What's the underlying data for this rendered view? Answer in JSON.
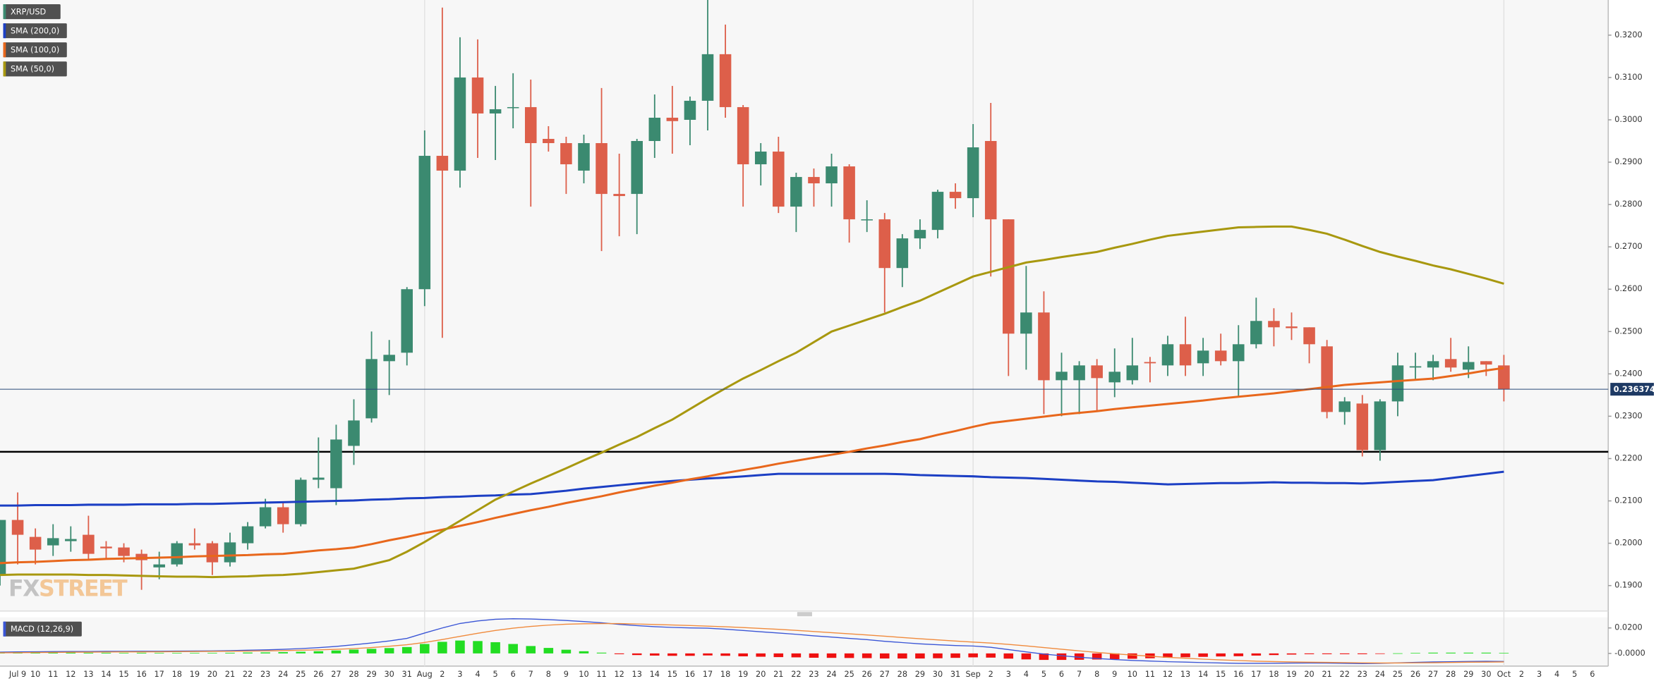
{
  "chart_data": [
    {
      "type": "candlestick",
      "name": "XRP/USD",
      "categories": [
        null,
        "Jul 9",
        "10",
        "11",
        "12",
        "13",
        "14",
        "15",
        "16",
        "17",
        "18",
        "19",
        "20",
        "21",
        "22",
        "23",
        "24",
        "25",
        "26",
        "27",
        "28",
        "29",
        "30",
        "31",
        "Aug",
        "2",
        "3",
        "4",
        "5",
        "6",
        "7",
        "8",
        "9",
        "10",
        "11",
        "12",
        "13",
        "14",
        "15",
        "16",
        "17",
        "18",
        "19",
        "20",
        "21",
        "22",
        "23",
        "24",
        "25",
        "26",
        "27",
        "28",
        "29",
        "30",
        "31",
        "Sep",
        "2",
        "3",
        "4",
        "5",
        "6",
        "7",
        "8",
        "9",
        "10",
        "11",
        "12",
        "13",
        "14",
        "15",
        "16",
        "17",
        "18",
        "19",
        "20",
        "21",
        "22",
        "23",
        "24",
        "25",
        "26",
        "27",
        "28",
        "29",
        "30",
        "Oct",
        "2",
        "3",
        "4",
        "5",
        "6"
      ],
      "open": [
        0.1925,
        0.2055,
        0.2015,
        0.1995,
        0.2005,
        0.202,
        0.1992,
        0.199,
        0.1975,
        0.1943,
        0.195,
        0.2,
        0.2,
        0.1955,
        0.2,
        0.204,
        0.2085,
        0.2045,
        0.215,
        0.213,
        0.223,
        0.2295,
        0.243,
        0.245,
        0.26,
        0.2915,
        0.288,
        0.31,
        0.3015,
        0.3028,
        0.303,
        0.2955,
        0.2945,
        0.288,
        0.2945,
        0.2825,
        0.2825,
        0.295,
        0.3005,
        0.3,
        0.3045,
        0.3155,
        0.303,
        0.2895,
        0.2925,
        0.2795,
        0.2865,
        0.285,
        0.289,
        0.2765,
        0.2765,
        0.265,
        0.272,
        0.274,
        0.283,
        0.2815,
        0.295,
        0.2765,
        0.2495,
        0.2545,
        0.2385,
        0.2385,
        0.242,
        0.238,
        0.2385,
        0.2428,
        0.242,
        0.247,
        0.2425,
        0.2455,
        0.243,
        0.247,
        0.2525,
        0.2512,
        0.251,
        0.2465,
        0.231,
        0.233,
        0.222,
        0.2335,
        0.2415,
        0.2415,
        0.2435,
        0.241,
        0.243,
        0.242,
        null,
        null,
        null,
        null,
        null
      ],
      "high": [
        0.2055,
        0.212,
        0.2035,
        0.2045,
        0.204,
        0.2065,
        0.2005,
        0.2,
        0.1985,
        0.198,
        0.2005,
        0.2035,
        0.2005,
        0.2025,
        0.205,
        0.2105,
        0.2095,
        0.2155,
        0.225,
        0.228,
        0.234,
        0.25,
        0.248,
        0.2605,
        0.2975,
        0.3265,
        0.3195,
        0.319,
        0.308,
        0.311,
        0.3095,
        0.2985,
        0.296,
        0.2965,
        0.3075,
        0.292,
        0.2955,
        0.306,
        0.308,
        0.3055,
        0.3285,
        0.3225,
        0.3035,
        0.2945,
        0.296,
        0.2875,
        0.2885,
        0.292,
        0.2895,
        0.281,
        0.278,
        0.273,
        0.2765,
        0.2835,
        0.285,
        0.299,
        0.304,
        0.2765,
        0.2655,
        0.2595,
        0.245,
        0.243,
        0.2435,
        0.246,
        0.2485,
        0.244,
        0.249,
        0.2535,
        0.2485,
        0.2495,
        0.2515,
        0.258,
        0.2555,
        0.2545,
        0.251,
        0.248,
        0.2345,
        0.235,
        0.234,
        0.245,
        0.245,
        0.2445,
        0.2485,
        0.2465,
        0.243,
        0.2445,
        null,
        null,
        null,
        null,
        null
      ],
      "low": [
        0.19,
        0.195,
        0.195,
        0.197,
        0.198,
        0.196,
        0.1965,
        0.1955,
        0.189,
        0.1915,
        0.1945,
        0.1985,
        0.1925,
        0.1945,
        0.1985,
        0.2035,
        0.2025,
        0.204,
        0.213,
        0.209,
        0.2185,
        0.2285,
        0.235,
        0.242,
        0.256,
        0.2485,
        0.284,
        0.291,
        0.2905,
        0.298,
        0.2795,
        0.2925,
        0.2825,
        0.285,
        0.269,
        0.2725,
        0.273,
        0.291,
        0.292,
        0.294,
        0.2975,
        0.3005,
        0.2795,
        0.2845,
        0.278,
        0.2735,
        0.2795,
        0.2795,
        0.271,
        0.2735,
        0.2545,
        0.2605,
        0.2695,
        0.272,
        0.279,
        0.277,
        0.263,
        0.2395,
        0.241,
        0.2305,
        0.23,
        0.2305,
        0.231,
        0.2345,
        0.2375,
        0.238,
        0.2395,
        0.2395,
        0.2395,
        0.242,
        0.2345,
        0.246,
        0.2465,
        0.248,
        0.2425,
        0.2295,
        0.228,
        0.2205,
        0.2195,
        0.23,
        0.2385,
        0.2385,
        0.2405,
        0.239,
        0.2395,
        0.2335,
        null,
        null,
        null,
        null,
        null
      ],
      "close": [
        0.2055,
        0.202,
        0.1985,
        0.2012,
        0.201,
        0.1975,
        0.1988,
        0.197,
        0.196,
        0.195,
        0.2,
        0.1995,
        0.1955,
        0.2002,
        0.204,
        0.2085,
        0.2045,
        0.215,
        0.2155,
        0.2245,
        0.229,
        0.2435,
        0.2445,
        0.26,
        0.2915,
        0.288,
        0.31,
        0.3015,
        0.3025,
        0.303,
        0.2945,
        0.2945,
        0.2895,
        0.2945,
        0.2825,
        0.282,
        0.295,
        0.3005,
        0.2997,
        0.3045,
        0.3155,
        0.303,
        0.2895,
        0.2925,
        0.2795,
        0.2865,
        0.285,
        0.289,
        0.2765,
        0.2765,
        0.265,
        0.272,
        0.274,
        0.283,
        0.2815,
        0.2935,
        0.2765,
        0.2495,
        0.2545,
        0.2385,
        0.2405,
        0.242,
        0.239,
        0.2405,
        0.242,
        0.2425,
        0.247,
        0.242,
        0.2455,
        0.243,
        0.247,
        0.2525,
        0.251,
        0.2508,
        0.247,
        0.231,
        0.2335,
        0.222,
        0.2335,
        0.242,
        0.2418,
        0.243,
        0.2415,
        0.2428,
        0.2422,
        0.2364,
        null,
        null,
        null,
        null,
        null
      ],
      "up_color": "#3b8a70",
      "down_color": "#dd5f4a",
      "series": [
        {
          "name": "SMA (200,0)",
          "color": "#1c3fc4",
          "values": [
            0.2089,
            0.2089,
            0.209,
            0.209,
            0.209,
            0.2091,
            0.2091,
            0.2091,
            0.2092,
            0.2092,
            0.2092,
            0.2093,
            0.2093,
            0.2094,
            0.2095,
            0.2096,
            0.2097,
            0.2098,
            0.2099,
            0.21,
            0.2101,
            0.2103,
            0.2104,
            0.2106,
            0.2107,
            0.2109,
            0.211,
            0.2112,
            0.2113,
            0.2115,
            0.2116,
            0.212,
            0.2124,
            0.2129,
            0.2133,
            0.2137,
            0.2141,
            0.2144,
            0.2147,
            0.215,
            0.2153,
            0.2155,
            0.2158,
            0.2161,
            0.2164,
            0.2164,
            0.2164,
            0.2164,
            0.2164,
            0.2164,
            0.2164,
            0.2163,
            0.2161,
            0.216,
            0.2159,
            0.2158,
            0.2156,
            0.2155,
            0.2154,
            0.2152,
            0.215,
            0.2148,
            0.2146,
            0.2145,
            0.2143,
            0.2141,
            0.2139,
            0.214,
            0.2141,
            0.2142,
            0.2142,
            0.2143,
            0.2144,
            0.2143,
            0.2143,
            0.2142,
            0.2142,
            0.2141,
            0.2143,
            0.2145,
            0.2147,
            0.2149,
            0.2154,
            0.2159,
            0.2164,
            0.2169,
            null,
            null,
            null,
            null,
            null
          ]
        },
        {
          "name": "SMA (100,0)",
          "color": "#e8671c",
          "values": [
            0.1953,
            0.1955,
            0.1956,
            0.1958,
            0.196,
            0.1961,
            0.1963,
            0.1964,
            0.1965,
            0.1966,
            0.1967,
            0.1969,
            0.197,
            0.1971,
            0.1972,
            0.1974,
            0.1975,
            0.1979,
            0.1983,
            0.1986,
            0.199,
            0.1998,
            0.2007,
            0.2015,
            0.2024,
            0.2032,
            0.2041,
            0.205,
            0.206,
            0.2069,
            0.2078,
            0.2086,
            0.2095,
            0.2103,
            0.2111,
            0.212,
            0.2128,
            0.2136,
            0.2143,
            0.2151,
            0.2158,
            0.2166,
            0.2173,
            0.218,
            0.2188,
            0.2195,
            0.2202,
            0.2209,
            0.2216,
            0.2224,
            0.2231,
            0.2239,
            0.2246,
            0.2256,
            0.2265,
            0.2275,
            0.2284,
            0.2289,
            0.2294,
            0.2299,
            0.2304,
            0.2308,
            0.2312,
            0.2317,
            0.2321,
            0.2325,
            0.2329,
            0.2333,
            0.2337,
            0.2342,
            0.2346,
            0.235,
            0.2354,
            0.2359,
            0.2364,
            0.2369,
            0.2374,
            0.2377,
            0.238,
            0.2383,
            0.2386,
            0.2389,
            0.2395,
            0.2401,
            0.2408,
            0.2414,
            null,
            null,
            null,
            null,
            null
          ]
        },
        {
          "name": "SMA (50,0)",
          "color": "#a8980f",
          "values": [
            0.1925,
            0.1926,
            0.1926,
            0.1926,
            0.1926,
            0.1925,
            0.1925,
            0.1924,
            0.1923,
            0.1922,
            0.1921,
            0.1921,
            0.192,
            0.1921,
            0.1922,
            0.1924,
            0.1925,
            0.1928,
            0.1932,
            0.1936,
            0.194,
            0.195,
            0.196,
            0.198,
            0.2003,
            0.2028,
            0.2053,
            0.2078,
            0.2103,
            0.2122,
            0.2141,
            0.2159,
            0.2177,
            0.2196,
            0.2214,
            0.2233,
            0.2251,
            0.2272,
            0.2292,
            0.2317,
            0.2342,
            0.2366,
            0.2389,
            0.2409,
            0.243,
            0.245,
            0.2475,
            0.25,
            0.2514,
            0.2528,
            0.2542,
            0.2558,
            0.2573,
            0.2592,
            0.2611,
            0.263,
            0.2641,
            0.2652,
            0.2663,
            0.2669,
            0.2676,
            0.2682,
            0.2688,
            0.2698,
            0.2707,
            0.2717,
            0.2726,
            0.2731,
            0.2736,
            0.2741,
            0.2746,
            0.2747,
            0.2748,
            0.2748,
            0.274,
            0.2731,
            0.2717,
            0.2702,
            0.2688,
            0.2677,
            0.2667,
            0.2656,
            0.2647,
            0.2636,
            0.2625,
            0.2613,
            null,
            null,
            null,
            null,
            null
          ]
        }
      ],
      "ylim": [
        0.184,
        0.3283
      ],
      "yticks": [
        {
          "value": 0.19,
          "label": "0.1900"
        },
        {
          "value": 0.2,
          "label": "0.2000"
        },
        {
          "value": 0.21,
          "label": "0.2100"
        },
        {
          "value": 0.22,
          "label": "0.2200"
        },
        {
          "value": 0.23,
          "label": "0.2300"
        },
        {
          "value": 0.24,
          "label": "0.2400"
        },
        {
          "value": 0.25,
          "label": "0.2500"
        },
        {
          "value": 0.26,
          "label": "0.2600"
        },
        {
          "value": 0.27,
          "label": "0.2700"
        },
        {
          "value": 0.28,
          "label": "0.2800"
        },
        {
          "value": 0.29,
          "label": "0.2900"
        },
        {
          "value": 0.3,
          "label": "0.3000"
        },
        {
          "value": 0.31,
          "label": "0.3100"
        },
        {
          "value": 0.32,
          "label": "0.3200"
        }
      ],
      "last_price": 0.236374,
      "support_line": 0.2216,
      "watermark": [
        "FX",
        "STREET"
      ]
    },
    {
      "type": "macd",
      "name": "MACD (12,26,9)",
      "macd": [
        0.001,
        0.0012,
        0.0013,
        0.0014,
        0.0015,
        0.0015,
        0.0016,
        0.0016,
        0.0017,
        0.0017,
        0.0018,
        0.0019,
        0.002,
        0.0022,
        0.0025,
        0.0028,
        0.0032,
        0.0038,
        0.0045,
        0.0055,
        0.0068,
        0.0082,
        0.0098,
        0.0118,
        0.016,
        0.02,
        0.0235,
        0.0255,
        0.0268,
        0.0272,
        0.027,
        0.0265,
        0.0258,
        0.025,
        0.024,
        0.0228,
        0.0218,
        0.021,
        0.0204,
        0.02,
        0.0198,
        0.019,
        0.018,
        0.017,
        0.016,
        0.015,
        0.0138,
        0.0128,
        0.0118,
        0.0108,
        0.0095,
        0.0085,
        0.0075,
        0.0068,
        0.0062,
        0.0058,
        0.0048,
        0.003,
        0.0012,
        -0.0005,
        -0.0018,
        -0.003,
        -0.004,
        -0.0048,
        -0.0055,
        -0.006,
        -0.0065,
        -0.0068,
        -0.0072,
        -0.0075,
        -0.0078,
        -0.0078,
        -0.0077,
        -0.0076,
        -0.0075,
        -0.0076,
        -0.0078,
        -0.008,
        -0.0078,
        -0.0074,
        -0.007,
        -0.0067,
        -0.0065,
        -0.0063,
        -0.0062,
        -0.0063,
        null,
        null,
        null,
        null,
        null
      ],
      "signal": [
        0.0005,
        0.0006,
        0.0007,
        0.0008,
        0.0009,
        0.001,
        0.0011,
        0.0012,
        0.0012,
        0.0013,
        0.0014,
        0.0015,
        0.0016,
        0.0017,
        0.0018,
        0.002,
        0.0022,
        0.0025,
        0.0028,
        0.0032,
        0.0038,
        0.0046,
        0.0056,
        0.0068,
        0.0086,
        0.0109,
        0.0134,
        0.0158,
        0.018,
        0.0198,
        0.0212,
        0.0222,
        0.0229,
        0.0233,
        0.0234,
        0.0234,
        0.0231,
        0.0227,
        0.0223,
        0.0219,
        0.0214,
        0.0209,
        0.0203,
        0.0196,
        0.0189,
        0.0181,
        0.0172,
        0.0163,
        0.0154,
        0.0145,
        0.0135,
        0.0125,
        0.0115,
        0.0106,
        0.0097,
        0.0089,
        0.0081,
        0.0071,
        0.0059,
        0.0046,
        0.0033,
        0.002,
        0.0008,
        -0.0003,
        -0.0013,
        -0.0022,
        -0.0031,
        -0.0038,
        -0.0045,
        -0.0051,
        -0.0056,
        -0.0061,
        -0.0064,
        -0.0067,
        -0.0069,
        -0.007,
        -0.0072,
        -0.0074,
        -0.0075,
        -0.0075,
        -0.0074,
        -0.0073,
        -0.0071,
        -0.0069,
        -0.0068,
        -0.0067,
        null,
        null,
        null,
        null,
        null
      ],
      "histogram": [
        0.0005,
        0.0006,
        0.0006,
        0.0006,
        0.0006,
        0.0005,
        0.0005,
        0.0004,
        0.0005,
        0.0004,
        0.0004,
        0.0004,
        0.0004,
        0.0005,
        0.0007,
        0.0008,
        0.001,
        0.0013,
        0.0017,
        0.0023,
        0.003,
        0.0036,
        0.0042,
        0.005,
        0.0074,
        0.0091,
        0.0101,
        0.0097,
        0.0088,
        0.0074,
        0.0058,
        0.0043,
        0.0029,
        0.0017,
        0.0006,
        -0.0006,
        -0.0013,
        -0.0017,
        -0.0019,
        -0.0019,
        -0.0016,
        -0.0019,
        -0.0023,
        -0.0026,
        -0.0029,
        -0.0031,
        -0.0034,
        -0.0035,
        -0.0036,
        -0.0037,
        -0.004,
        -0.004,
        -0.004,
        -0.0038,
        -0.0035,
        -0.0031,
        -0.0033,
        -0.0041,
        -0.0047,
        -0.0051,
        -0.0051,
        -0.005,
        -0.0048,
        -0.0045,
        -0.0042,
        -0.0038,
        -0.0034,
        -0.003,
        -0.0027,
        -0.0024,
        -0.0022,
        -0.0017,
        -0.0013,
        -0.0009,
        -0.0006,
        -0.0006,
        -0.0006,
        -0.0006,
        -0.0003,
        0.0001,
        0.0004,
        0.0006,
        0.0006,
        0.0006,
        0.0006,
        0.0004,
        null,
        null,
        null,
        null,
        null
      ],
      "macd_color": "#3a55d6",
      "signal_color": "#f08a3c",
      "positive_color": "#22dd22",
      "negative_color": "#ee1111",
      "ylim": [
        -0.01,
        0.0283
      ],
      "yticks": [
        {
          "value": 0.02,
          "label": "0.0200"
        },
        {
          "value": 0,
          "label": "-0.0000"
        }
      ]
    }
  ]
}
